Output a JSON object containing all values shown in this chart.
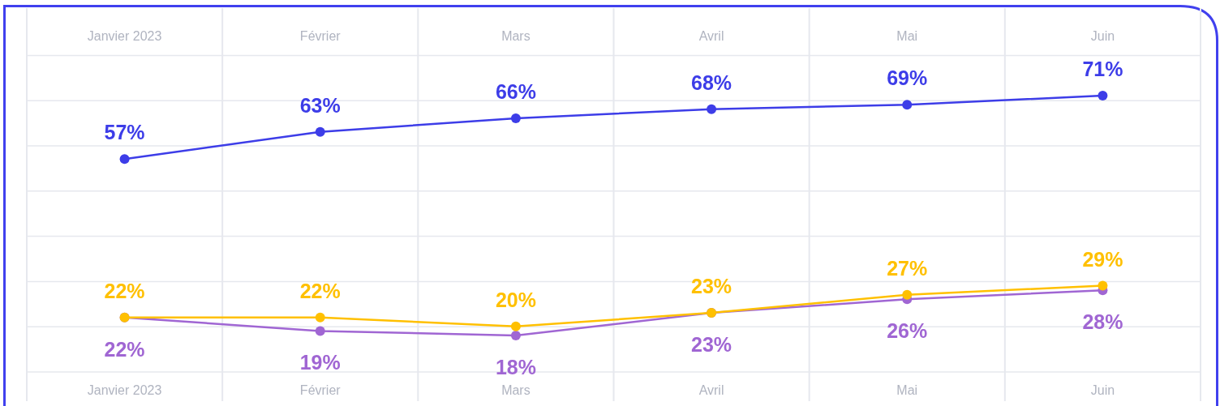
{
  "chart_data": {
    "type": "line",
    "categories": [
      "Janvier 2023",
      "Février",
      "Mars",
      "Avril",
      "Mai",
      "Juin"
    ],
    "series": [
      {
        "color": "#3d3de8",
        "values": [
          57,
          63,
          66,
          68,
          69,
          71
        ],
        "value_labels": [
          "57%",
          "63%",
          "66%",
          "68%",
          "69%",
          "71%"
        ]
      },
      {
        "color": "#a066d3",
        "values": [
          22,
          19,
          18,
          23,
          26,
          28
        ],
        "value_labels": [
          "22%",
          "19%",
          "18%",
          "23%",
          "26%",
          "28%"
        ]
      },
      {
        "color": "#ffc000",
        "values": [
          22,
          22,
          20,
          23,
          27,
          29
        ],
        "value_labels": [
          "22%",
          "22%",
          "20%",
          "23%",
          "27%",
          "29%"
        ]
      }
    ],
    "grid": true,
    "marker": "circle",
    "line_style": "solid",
    "tick_labels": "x"
  }
}
